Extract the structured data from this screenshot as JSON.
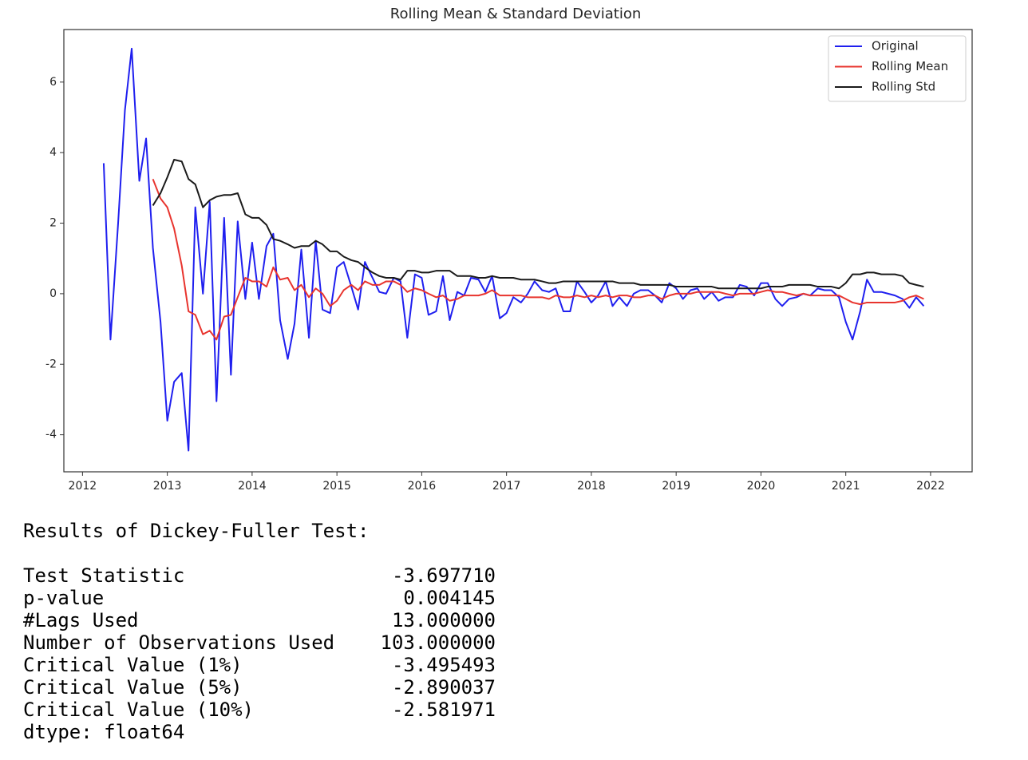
{
  "chart_data": {
    "type": "line",
    "title": "Rolling Mean & Standard Deviation",
    "x": [
      2012.25,
      2012.33,
      2012.42,
      2012.5,
      2012.58,
      2012.67,
      2012.75,
      2012.83,
      2012.92,
      2013.0,
      2013.08,
      2013.17,
      2013.25,
      2013.33,
      2013.42,
      2013.5,
      2013.58,
      2013.67,
      2013.75,
      2013.83,
      2013.92,
      2014.0,
      2014.08,
      2014.17,
      2014.25,
      2014.33,
      2014.42,
      2014.5,
      2014.58,
      2014.67,
      2014.75,
      2014.83,
      2014.92,
      2015.0,
      2015.08,
      2015.17,
      2015.25,
      2015.33,
      2015.42,
      2015.5,
      2015.58,
      2015.67,
      2015.75,
      2015.83,
      2015.92,
      2016.0,
      2016.08,
      2016.17,
      2016.25,
      2016.33,
      2016.42,
      2016.5,
      2016.58,
      2016.67,
      2016.75,
      2016.83,
      2016.92,
      2017.0,
      2017.08,
      2017.17,
      2017.25,
      2017.33,
      2017.42,
      2017.5,
      2017.58,
      2017.67,
      2017.75,
      2017.83,
      2017.92,
      2018.0,
      2018.08,
      2018.17,
      2018.25,
      2018.33,
      2018.42,
      2018.5,
      2018.58,
      2018.67,
      2018.75,
      2018.83,
      2018.92,
      2019.0,
      2019.08,
      2019.17,
      2019.25,
      2019.33,
      2019.42,
      2019.5,
      2019.58,
      2019.67,
      2019.75,
      2019.83,
      2019.92,
      2020.0,
      2020.08,
      2020.17,
      2020.25,
      2020.33,
      2020.42,
      2020.5,
      2020.58,
      2020.67,
      2020.75,
      2020.83,
      2020.92,
      2021.0,
      2021.08,
      2021.17,
      2021.25,
      2021.33,
      2021.42,
      2021.5,
      2021.58,
      2021.67,
      2021.75,
      2021.83,
      2021.92
    ],
    "series": [
      {
        "name": "Original",
        "color": "#1f1fef",
        "values": [
          3.7,
          -1.3,
          2.0,
          5.2,
          6.95,
          3.2,
          4.4,
          1.3,
          -0.8,
          -3.6,
          -2.5,
          -2.25,
          -4.45,
          2.45,
          0.0,
          2.6,
          -3.05,
          2.15,
          -2.3,
          2.05,
          -0.15,
          1.45,
          -0.15,
          1.35,
          1.7,
          -0.75,
          -1.85,
          -0.85,
          1.25,
          -1.25,
          1.5,
          -0.45,
          -0.55,
          0.75,
          0.9,
          0.2,
          -0.45,
          0.9,
          0.45,
          0.05,
          0.0,
          0.45,
          0.35,
          -1.25,
          0.55,
          0.45,
          -0.6,
          -0.5,
          0.5,
          -0.75,
          0.05,
          -0.05,
          0.45,
          0.4,
          0.05,
          0.5,
          -0.7,
          -0.55,
          -0.1,
          -0.25,
          0.0,
          0.35,
          0.1,
          0.05,
          0.15,
          -0.5,
          -0.5,
          0.35,
          0.05,
          -0.25,
          -0.05,
          0.35,
          -0.35,
          -0.1,
          -0.35,
          0.0,
          0.1,
          0.1,
          -0.05,
          -0.25,
          0.3,
          0.15,
          -0.15,
          0.1,
          0.15,
          -0.15,
          0.05,
          -0.2,
          -0.1,
          -0.1,
          0.25,
          0.2,
          -0.05,
          0.3,
          0.3,
          -0.15,
          -0.35,
          -0.15,
          -0.1,
          0.0,
          -0.05,
          0.15,
          0.1,
          0.1,
          -0.1,
          -0.8,
          -1.3,
          -0.5,
          0.4,
          0.05,
          0.05,
          0.0,
          -0.05,
          -0.15,
          -0.4,
          -0.1,
          -0.35
        ]
      },
      {
        "name": "Rolling Mean",
        "color": "#e8342e",
        "values": [
          null,
          null,
          null,
          null,
          null,
          null,
          null,
          3.25,
          2.7,
          2.45,
          1.85,
          0.8,
          -0.5,
          -0.6,
          -1.15,
          -1.05,
          -1.3,
          -0.65,
          -0.6,
          -0.1,
          0.45,
          0.35,
          0.35,
          0.2,
          0.75,
          0.4,
          0.45,
          0.1,
          0.25,
          -0.1,
          0.15,
          0.0,
          -0.35,
          -0.2,
          0.1,
          0.25,
          0.1,
          0.35,
          0.25,
          0.25,
          0.35,
          0.35,
          0.25,
          0.05,
          0.15,
          0.1,
          0.0,
          -0.1,
          -0.05,
          -0.2,
          -0.15,
          -0.05,
          -0.05,
          -0.05,
          0.0,
          0.1,
          -0.05,
          -0.05,
          -0.05,
          -0.05,
          -0.1,
          -0.1,
          -0.1,
          -0.15,
          -0.05,
          -0.1,
          -0.1,
          -0.05,
          -0.1,
          -0.05,
          -0.1,
          -0.05,
          -0.1,
          -0.05,
          -0.05,
          -0.1,
          -0.1,
          -0.05,
          -0.05,
          -0.15,
          -0.05,
          0.0,
          0.0,
          0.0,
          0.05,
          0.05,
          0.05,
          0.05,
          0.0,
          -0.05,
          0.0,
          0.0,
          0.0,
          0.05,
          0.1,
          0.05,
          0.05,
          0.0,
          -0.05,
          0.0,
          -0.05,
          -0.05,
          -0.05,
          -0.05,
          -0.05,
          -0.15,
          -0.25,
          -0.3,
          -0.25,
          -0.25,
          -0.25,
          -0.25,
          -0.25,
          -0.2,
          -0.1,
          -0.05,
          -0.15
        ]
      },
      {
        "name": "Rolling Std",
        "color": "#1a1a1a",
        "values": [
          null,
          null,
          null,
          null,
          null,
          null,
          null,
          2.5,
          2.85,
          3.3,
          3.8,
          3.75,
          3.25,
          3.1,
          2.45,
          2.65,
          2.75,
          2.8,
          2.8,
          2.85,
          2.25,
          2.15,
          2.15,
          1.95,
          1.55,
          1.5,
          1.4,
          1.3,
          1.35,
          1.35,
          1.5,
          1.4,
          1.2,
          1.2,
          1.05,
          0.95,
          0.9,
          0.75,
          0.6,
          0.5,
          0.45,
          0.45,
          0.4,
          0.65,
          0.65,
          0.6,
          0.6,
          0.65,
          0.65,
          0.65,
          0.5,
          0.5,
          0.5,
          0.45,
          0.45,
          0.5,
          0.45,
          0.45,
          0.45,
          0.4,
          0.4,
          0.4,
          0.35,
          0.3,
          0.3,
          0.35,
          0.35,
          0.35,
          0.35,
          0.35,
          0.35,
          0.35,
          0.35,
          0.3,
          0.3,
          0.3,
          0.25,
          0.25,
          0.25,
          0.25,
          0.25,
          0.2,
          0.2,
          0.2,
          0.2,
          0.2,
          0.2,
          0.15,
          0.15,
          0.15,
          0.15,
          0.15,
          0.15,
          0.15,
          0.2,
          0.2,
          0.2,
          0.25,
          0.25,
          0.25,
          0.25,
          0.2,
          0.2,
          0.2,
          0.15,
          0.3,
          0.55,
          0.55,
          0.6,
          0.6,
          0.55,
          0.55,
          0.55,
          0.5,
          0.3,
          0.25,
          0.2
        ]
      }
    ],
    "xlim": [
      2011.78,
      2022.49
    ],
    "xticks": [
      2012,
      2013,
      2014,
      2015,
      2016,
      2017,
      2018,
      2019,
      2020,
      2021,
      2022
    ],
    "ylim": [
      -5.05,
      7.49
    ],
    "yticks": [
      -4,
      -2,
      0,
      2,
      4,
      6
    ],
    "grid": false,
    "legend": "upper right"
  },
  "output": {
    "heading": "Results of Dickey-Fuller Test:",
    "rows": [
      [
        "Test Statistic",
        "-3.697710"
      ],
      [
        "p-value",
        "0.004145"
      ],
      [
        "#Lags Used",
        "13.000000"
      ],
      [
        "Number of Observations Used",
        "103.000000"
      ],
      [
        "Critical Value (1%)",
        "-3.495493"
      ],
      [
        "Critical Value (5%)",
        "-2.890037"
      ],
      [
        "Critical Value (10%)",
        "-2.581971"
      ]
    ],
    "dtype": "dtype: float64"
  }
}
